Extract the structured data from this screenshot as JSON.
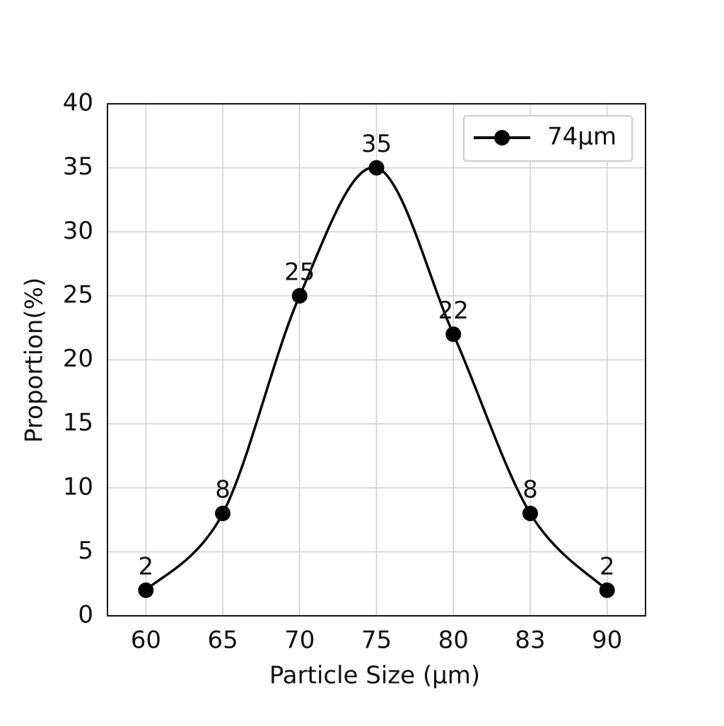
{
  "chart_data": {
    "type": "line",
    "x_label": "Particle Size (μm)",
    "y_label": "Proportion(%)",
    "categories": [
      "60",
      "65",
      "70",
      "75",
      "80",
      "83",
      "90"
    ],
    "series": [
      {
        "name": "74μm",
        "color": "#000000",
        "values": [
          2,
          8,
          25,
          35,
          22,
          8,
          2
        ]
      }
    ],
    "ylim": [
      0,
      40
    ],
    "yticks": [
      0,
      5,
      10,
      15,
      20,
      25,
      30,
      35,
      40
    ],
    "grid": true,
    "legend": "upper right"
  }
}
